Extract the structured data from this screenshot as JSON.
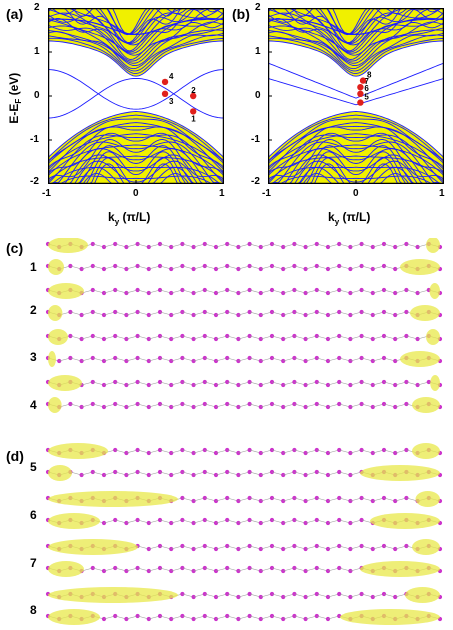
{
  "panel_a": {
    "label": "(a)",
    "y_axis_label": "E-E",
    "y_axis_sub": "F",
    "y_axis_unit": " (eV)",
    "x_ticks": [
      "-1",
      "0",
      "1"
    ],
    "y_ticks": [
      "2",
      "1",
      "0",
      "-1",
      "-2"
    ],
    "x_axis_prefix": "k",
    "x_axis_sub": "y",
    "x_axis_unit": " (π/L)",
    "state_labels": [
      "1",
      "2",
      "3",
      "4"
    ]
  },
  "panel_b": {
    "label": "(b)",
    "x_ticks": [
      "-1",
      "0",
      "1"
    ],
    "y_ticks": [
      "2",
      "1",
      "0",
      "-1",
      "-2"
    ],
    "x_axis_prefix": "k",
    "x_axis_sub": "y",
    "x_axis_unit": " (π/L)",
    "state_labels": [
      "5",
      "6",
      "7",
      "8"
    ]
  },
  "chart_data": [
    {
      "type": "line",
      "title": "",
      "xlabel": "ky (π/L)",
      "ylabel": "E-EF (eV)",
      "xlim": [
        -1,
        1
      ],
      "ylim": [
        -2,
        2
      ],
      "grid": false,
      "band_color": "#1c1cff",
      "fill_color": "#f0f000",
      "marked_states": [
        {
          "label": "1",
          "k": 0.65,
          "E": -0.35
        },
        {
          "label": "2",
          "k": 0.65,
          "E": 0.0
        },
        {
          "label": "3",
          "k": 0.33,
          "E": 0.05
        },
        {
          "label": "4",
          "k": 0.33,
          "E": 0.32
        }
      ]
    },
    {
      "type": "line",
      "title": "",
      "xlabel": "ky (π/L)",
      "ylabel": "E-EF (eV)",
      "xlim": [
        -1,
        1
      ],
      "ylim": [
        -2,
        2
      ],
      "grid": false,
      "band_color": "#1c1cff",
      "fill_color": "#f0f000",
      "marked_states": [
        {
          "label": "5",
          "k": 0.05,
          "E": -0.15
        },
        {
          "label": "6",
          "k": 0.05,
          "E": 0.05
        },
        {
          "label": "7",
          "k": 0.05,
          "E": 0.2
        },
        {
          "label": "8",
          "k": 0.08,
          "E": 0.35
        }
      ]
    }
  ],
  "panel_c": {
    "label": "(c)",
    "rows": [
      {
        "label": "1",
        "left": true,
        "right": true
      },
      {
        "label": "2",
        "left": true,
        "right": true
      },
      {
        "label": "3",
        "left": true,
        "right": true
      },
      {
        "label": "4",
        "left": true,
        "right": true
      }
    ]
  },
  "panel_d": {
    "label": "(d)",
    "rows": [
      {
        "label": "5",
        "left": true,
        "right": true
      },
      {
        "label": "6",
        "left": true,
        "right": true
      },
      {
        "label": "7",
        "left": true,
        "right": true
      },
      {
        "label": "8",
        "left": true,
        "right": true
      }
    ]
  },
  "colors": {
    "atom": "#cc33cc",
    "atom_alt": "#e060e0",
    "density": "#e8e84a",
    "band": "#1c1cff",
    "band_fill": "#f2f200",
    "marker": "#e0201c"
  }
}
